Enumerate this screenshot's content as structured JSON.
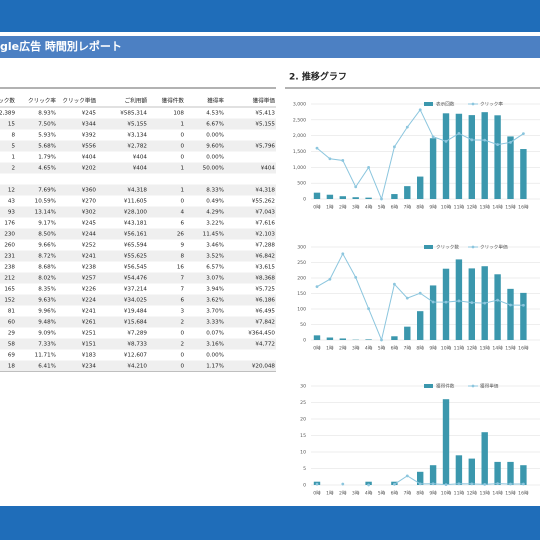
{
  "header": {
    "title": "gle広告 時間別レポート"
  },
  "section_title": "2. 推移グラフ",
  "table": {
    "headers": [
      "ック数",
      "クリック率",
      "クリック単価",
      "ご利用額",
      "獲得件数",
      "獲得率",
      "獲得単価"
    ],
    "rows": [
      [
        "2,389",
        "8.93%",
        "¥245",
        "¥585,314",
        "108",
        "4.53%",
        "¥5,413"
      ],
      [
        "15",
        "7.50%",
        "¥344",
        "¥5,155",
        "1",
        "6.67%",
        "¥5,155"
      ],
      [
        "8",
        "5.93%",
        "¥392",
        "¥3,134",
        "0",
        "0.00%",
        null
      ],
      [
        "5",
        "5.68%",
        "¥556",
        "¥2,782",
        "0",
        "9.60%",
        "¥5,796"
      ],
      [
        "1",
        "1.79%",
        "¥404",
        "¥404",
        "0",
        "0.00%",
        null
      ],
      [
        "2",
        "4.65%",
        "¥202",
        "¥404",
        "1",
        "50.00%",
        "¥404"
      ],
      [
        null,
        null,
        null,
        null,
        null,
        null,
        null
      ],
      [
        "12",
        "7.69%",
        "¥360",
        "¥4,318",
        "1",
        "8.33%",
        "¥4,318"
      ],
      [
        "43",
        "10.59%",
        "¥270",
        "¥11,605",
        "0",
        "0.49%",
        "¥55,262"
      ],
      [
        "93",
        "13.14%",
        "¥302",
        "¥28,100",
        "4",
        "4.29%",
        "¥7,043"
      ],
      [
        "176",
        "9.17%",
        "¥245",
        "¥43,181",
        "6",
        "3.22%",
        "¥7,616"
      ],
      [
        "230",
        "8.50%",
        "¥244",
        "¥56,161",
        "26",
        "11.45%",
        "¥2,103"
      ],
      [
        "260",
        "9.66%",
        "¥252",
        "¥65,594",
        "9",
        "3.46%",
        "¥7,288"
      ],
      [
        "231",
        "8.72%",
        "¥241",
        "¥55,625",
        "8",
        "3.52%",
        "¥6,842"
      ],
      [
        "238",
        "8.68%",
        "¥238",
        "¥56,545",
        "16",
        "6.57%",
        "¥3,615"
      ],
      [
        "212",
        "8.02%",
        "¥257",
        "¥54,476",
        "7",
        "3.07%",
        "¥8,368"
      ],
      [
        "165",
        "8.35%",
        "¥226",
        "¥37,214",
        "7",
        "3.94%",
        "¥5,725"
      ],
      [
        "152",
        "9.63%",
        "¥224",
        "¥34,025",
        "6",
        "3.62%",
        "¥6,186"
      ],
      [
        "81",
        "9.96%",
        "¥241",
        "¥19,484",
        "3",
        "3.70%",
        "¥6,495"
      ],
      [
        "60",
        "9.48%",
        "¥261",
        "¥15,684",
        "2",
        "3.33%",
        "¥7,842"
      ],
      [
        "29",
        "9.09%",
        "¥251",
        "¥7,289",
        "0",
        "0.07%",
        "¥364,450"
      ],
      [
        "58",
        "7.33%",
        "¥151",
        "¥8,733",
        "2",
        "3.16%",
        "¥4,772"
      ],
      [
        "69",
        "11.71%",
        "¥183",
        "¥12,607",
        "0",
        "0.00%",
        null
      ],
      [
        "18",
        "6.41%",
        "¥234",
        "¥4,210",
        "0",
        "1.17%",
        "¥20,048"
      ]
    ]
  },
  "chart_data": [
    {
      "type": "bar",
      "categories": [
        "0時",
        "1時",
        "2時",
        "3時",
        "4時",
        "5時",
        "6時",
        "7時",
        "8時",
        "9時",
        "10時",
        "11時",
        "12時",
        "13時",
        "14時",
        "15時",
        "16時"
      ],
      "ylim": [
        0,
        3000
      ],
      "yticks": [
        0,
        500,
        {
          "value": 1000,
          "label": "1,000"
        },
        {
          "value": 1500,
          "label": "1,500"
        },
        {
          "value": 2000,
          "label": "2,000"
        },
        {
          "value": 2500,
          "label": "2,500"
        },
        {
          "value": 3000,
          "label": "3,000"
        }
      ],
      "y2lim": [
        0,
        14
      ],
      "grid": true,
      "series": [
        {
          "name": "表示回数",
          "type": "bar",
          "color": "#3b97ad",
          "values": [
            200,
            135,
            88,
            56,
            43,
            0,
            156,
            406,
            708,
            1919,
            2706,
            2692,
            2649,
            2742,
            2643,
            1976,
            1578
          ]
        },
        {
          "name": "クリック率",
          "type": "line",
          "axis": "y2",
          "color": "#8cc6de",
          "values": [
            7.5,
            5.93,
            5.68,
            1.79,
            4.65,
            0,
            7.69,
            10.59,
            13.14,
            9.17,
            8.5,
            9.66,
            8.72,
            8.68,
            8.02,
            8.35,
            9.63
          ]
        }
      ]
    },
    {
      "type": "bar",
      "categories": [
        "0時",
        "1時",
        "2時",
        "3時",
        "4時",
        "5時",
        "6時",
        "7時",
        "8時",
        "9時",
        "10時",
        "11時",
        "12時",
        "13時",
        "14時",
        "15時",
        "16時"
      ],
      "ylim": [
        0,
        300
      ],
      "yticks": [
        0,
        50,
        100,
        150,
        200,
        250,
        300
      ],
      "y2lim": [
        0,
        600
      ],
      "grid": true,
      "series": [
        {
          "name": "クリック数",
          "type": "bar",
          "color": "#3b97ad",
          "values": [
            15,
            8,
            5,
            1,
            2,
            0,
            12,
            43,
            93,
            176,
            230,
            260,
            231,
            238,
            212,
            165,
            152
          ]
        },
        {
          "name": "クリック単価",
          "type": "line",
          "axis": "y2",
          "color": "#8cc6de",
          "values": [
            344,
            392,
            556,
            404,
            202,
            0,
            360,
            270,
            302,
            245,
            244,
            252,
            241,
            238,
            257,
            226,
            224
          ]
        }
      ]
    },
    {
      "type": "bar",
      "categories": [
        "0時",
        "1時",
        "2時",
        "3時",
        "4時",
        "5時",
        "6時",
        "7時",
        "8時",
        "9時",
        "10時",
        "11時",
        "12時",
        "13時",
        "14時",
        "15時",
        "16時"
      ],
      "ylim": [
        0,
        30
      ],
      "yticks": [
        0,
        5,
        10,
        15,
        20,
        25,
        30
      ],
      "y2lim": [
        0,
        600000
      ],
      "grid": true,
      "series": [
        {
          "name": "獲得件数",
          "type": "bar",
          "color": "#3b97ad",
          "values": [
            1,
            0,
            0,
            0,
            1,
            0,
            1,
            0,
            4,
            6,
            26,
            9,
            8,
            16,
            7,
            7,
            6
          ]
        },
        {
          "name": "獲得単価",
          "type": "line",
          "axis": "y2",
          "color": "#8cc6de",
          "values": [
            5155,
            null,
            5796,
            null,
            404,
            null,
            4318,
            55262,
            7043,
            7616,
            2103,
            7288,
            6842,
            3615,
            8368,
            5725,
            6186
          ]
        }
      ]
    }
  ]
}
